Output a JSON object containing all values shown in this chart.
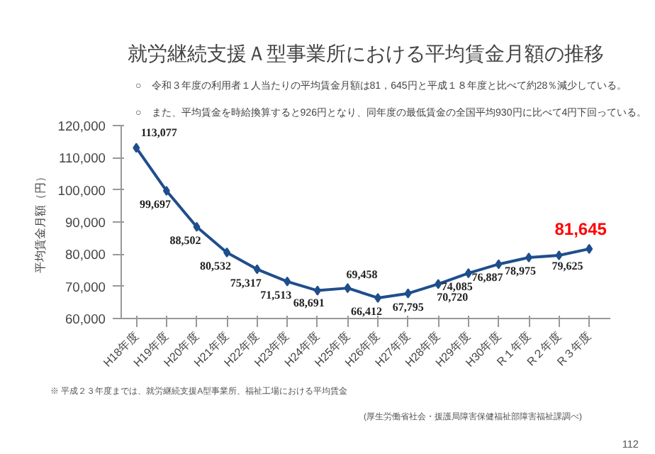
{
  "chart_data": {
    "type": "line",
    "title": "就労継続支援Ａ型事業所における平均賃金月額の推移",
    "ylabel": "平均賃金月額（円）",
    "categories": [
      "H18年度",
      "H19年度",
      "H20年度",
      "H21年度",
      "H22年度",
      "H23年度",
      "H24年度",
      "H25年度",
      "H26年度",
      "H27年度",
      "H28年度",
      "H29年度",
      "H30年度",
      "R１年度",
      "R２年度",
      "R３年度"
    ],
    "series": [
      {
        "color": "#1f4e8c",
        "values": [
          113077,
          99697,
          88502,
          80532,
          75317,
          71513,
          68691,
          69458,
          66412,
          67795,
          70720,
          74085,
          76887,
          78975,
          79625,
          81645
        ],
        "value_labels": [
          "113,077",
          "99,697",
          "88,502",
          "80,532",
          "75,317",
          "71,513",
          "68,691",
          "69,458",
          "66,412",
          "67,795",
          "70,720",
          "74,085",
          "76,887",
          "78,975",
          "79,625",
          null
        ]
      }
    ],
    "annotations": [
      "○　令和３年度の利用者１人当たりの平均賃金月額は81，645円と平成１８年度と比べて約28％減少している。",
      "○　また、平均賃金を時給換算すると926円となり、同年度の最低賃金の全国平均930円に比べて4円下回っている。",
      {
        "text": "81,645",
        "x": "R３年度",
        "y": 81645
      },
      "※ 平成２３年度までは、就労継続支援A型事業所、福祉工場における平均賃金",
      "(厚生労働省社会・援護局障害保健福祉部障害福祉課調べ)",
      "112"
    ],
    "ylim": [
      60000,
      120000
    ],
    "yticks": [
      {
        "value": 60000,
        "label": "60,000"
      },
      {
        "value": 70000,
        "label": "70,000"
      },
      {
        "value": 80000,
        "label": "80,000"
      },
      {
        "value": 90000,
        "label": "90,000"
      },
      {
        "value": 100000,
        "label": "100,000"
      },
      {
        "value": 110000,
        "label": "110,000"
      },
      {
        "value": 120000,
        "label": "120,000"
      }
    ],
    "grid": false,
    "marker": "diamond",
    "line_style": "solid"
  }
}
